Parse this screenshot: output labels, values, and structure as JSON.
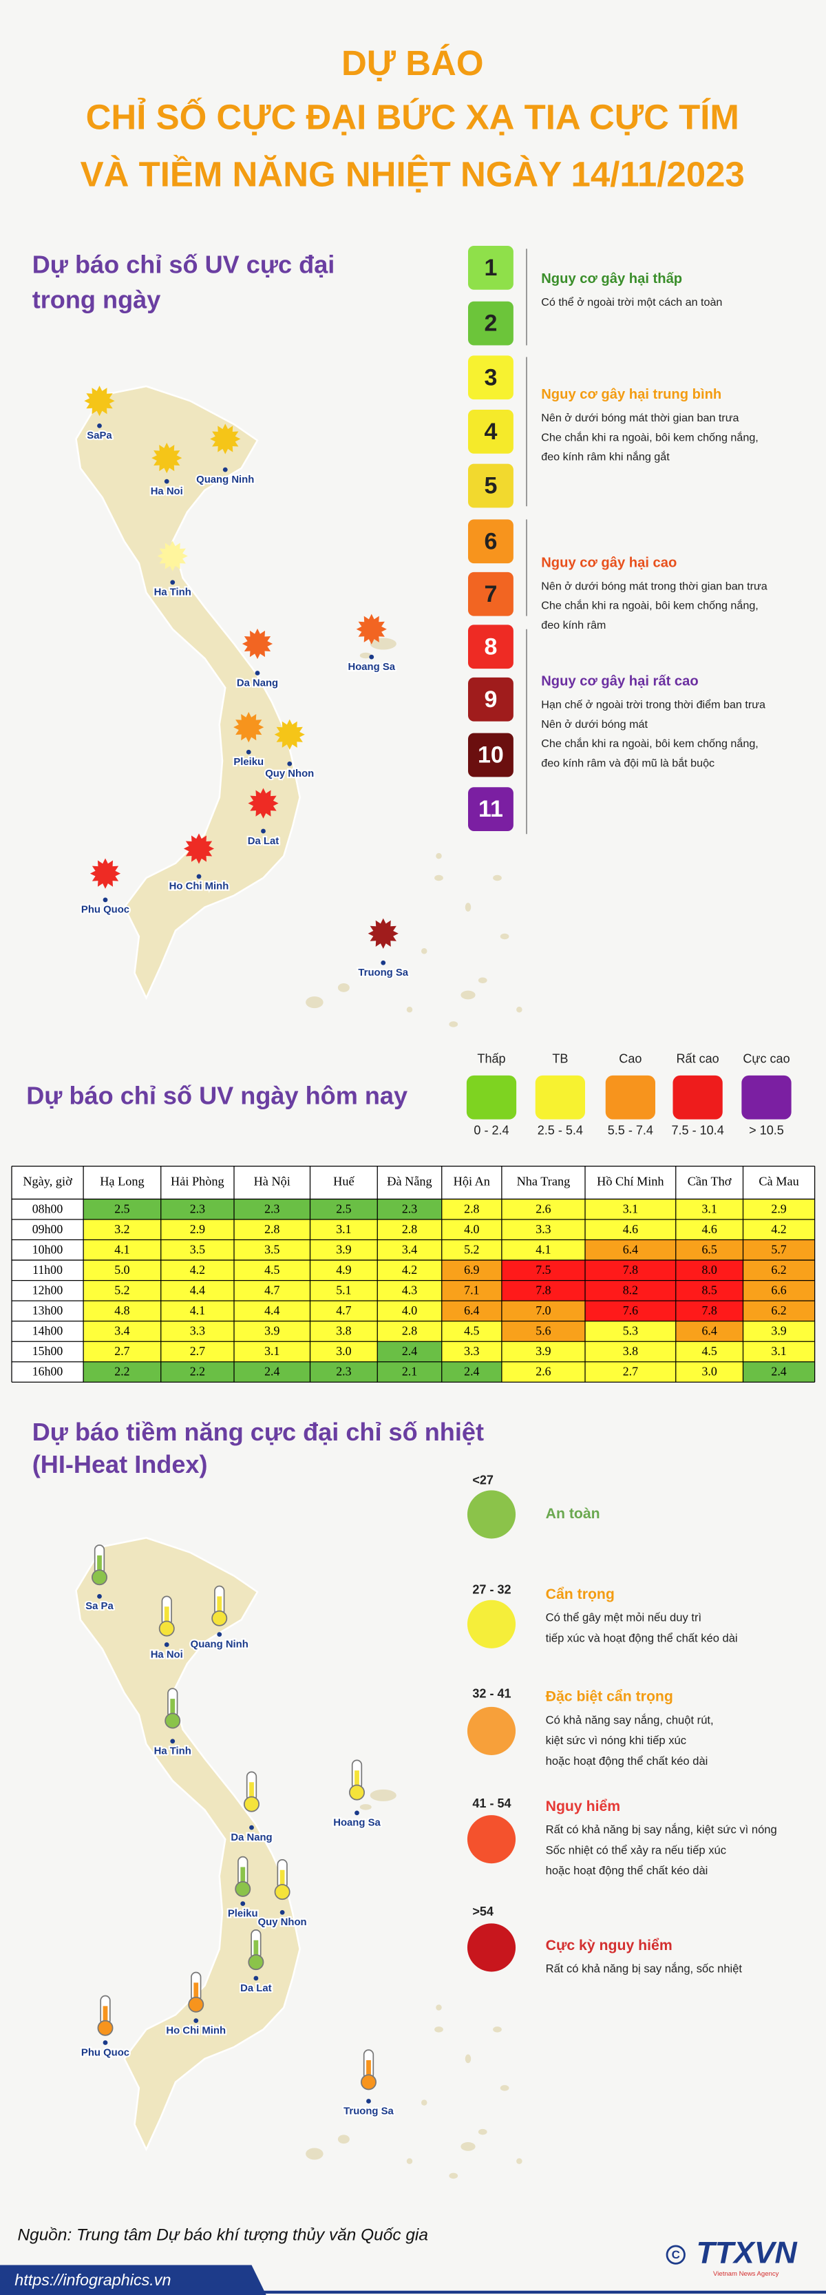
{
  "header": {
    "title_lines": [
      "DỰ BÁO",
      "CHỈ SỐ CỰC ĐẠI BỨC XẠ TIA CỰC TÍM",
      "VÀ TIỀM NĂNG NHIỆT NGÀY 14/11/2023"
    ]
  },
  "uv_map": {
    "title_lines": [
      "Dự báo chỉ số UV cực đại",
      "trong ngày"
    ],
    "places": [
      {
        "label": "SaPa",
        "color": "#f5c518"
      },
      {
        "label": "Ha Noi",
        "color": "#f5c518"
      },
      {
        "label": "Quang Ninh",
        "color": "#f5c518"
      },
      {
        "label": "Ha Tinh",
        "color": "#fff59d"
      },
      {
        "label": "Hoang Sa",
        "color": "#f26522"
      },
      {
        "label": "Da Nang",
        "color": "#f26522"
      },
      {
        "label": "Pleiku",
        "color": "#f7941d"
      },
      {
        "label": "Quy Nhon",
        "color": "#f5c518"
      },
      {
        "label": "Da Lat",
        "color": "#ee2b24"
      },
      {
        "label": "Ho Chi Minh",
        "color": "#ee2b24"
      },
      {
        "label": "Phu Quoc",
        "color": "#ee2b24"
      },
      {
        "label": "Truong Sa",
        "color": "#a01c1c"
      }
    ]
  },
  "uv_scale": {
    "levels": [
      {
        "label": 1,
        "color": "#8fe04a"
      },
      {
        "label": 2,
        "color": "#6cc53a"
      },
      {
        "label": 3,
        "color": "#f7f230"
      },
      {
        "label": 4,
        "color": "#f5ea2a"
      },
      {
        "label": 5,
        "color": "#f2d92e"
      },
      {
        "label": 6,
        "color": "#f7941d"
      },
      {
        "label": 7,
        "color": "#f26522"
      },
      {
        "label": 8,
        "color": "#ee2b24"
      },
      {
        "label": 9,
        "color": "#a01c1c"
      },
      {
        "label": 10,
        "color": "#6b0f0f"
      },
      {
        "label": 11,
        "color": "#7b1fa2"
      }
    ],
    "groups": [
      {
        "title": "Nguy cơ gây hại thấp",
        "color": "#3a8e2a",
        "lines": [
          "Có thể ở ngoài trời một cách an toàn"
        ]
      },
      {
        "title": "Nguy cơ gây hại trung bình",
        "color": "#f39c12",
        "lines": [
          "Nên ở dưới bóng mát thời gian ban trưa",
          "Che chắn khi ra ngoài, bôi kem chống nắng,",
          "đeo kính râm khi nắng gắt"
        ]
      },
      {
        "title": "Nguy cơ gây hại cao",
        "color": "#e8501c",
        "lines": [
          "Nên ở dưới bóng mát trong thời gian ban trưa",
          "Che chắn khi ra ngoài, bôi kem chống nắng,",
          "đeo kính râm"
        ]
      },
      {
        "title": "Nguy cơ gây hại rất cao",
        "color": "#6b2fa0",
        "lines": [
          "Hạn chế ở ngoài trời trong thời điểm ban trưa",
          "Nên ở dưới bóng mát",
          "Che chắn khi ra ngoài, bôi kem chống nắng,",
          "đeo kính râm và đội mũ là bắt buộc"
        ]
      }
    ]
  },
  "uv_today": {
    "title": "Dự báo chỉ số UV ngày hôm nay",
    "legend": [
      {
        "name": "Thấp",
        "range": "0 - 2.4",
        "color": "#7ed321"
      },
      {
        "name": "TB",
        "range": "2.5 - 5.4",
        "color": "#f7f230"
      },
      {
        "name": "Cao",
        "range": "5.5 - 7.4",
        "color": "#f7941d"
      },
      {
        "name": "Rất cao",
        "range": "7.5 - 10.4",
        "color": "#ee1c1c"
      },
      {
        "name": "Cực cao",
        "range": "> 10.5",
        "color": "#7b1fa2"
      }
    ]
  },
  "uv_table": {
    "header": [
      "Ngày, giờ",
      "Hạ Long",
      "Hải Phòng",
      "Hà Nội",
      "Huế",
      "Đà Nẵng",
      "Hội An",
      "Nha Trang",
      "Hồ Chí Minh",
      "Cần Thơ",
      "Cà Mau"
    ],
    "rows": [
      {
        "time": "08h00",
        "values": [
          "2.5",
          "2.3",
          "2.3",
          "2.5",
          "2.3",
          "2.8",
          "2.6",
          "3.1",
          "3.1",
          "2.9"
        ],
        "colors": [
          "#6abf45",
          "#6abf45",
          "#6abf45",
          "#6abf45",
          "#6abf45",
          "#ffff3b",
          "#ffff3b",
          "#ffff3b",
          "#ffff3b",
          "#ffff3b"
        ]
      },
      {
        "time": "09h00",
        "values": [
          "3.2",
          "2.9",
          "2.8",
          "3.1",
          "2.8",
          "4.0",
          "3.3",
          "4.6",
          "4.6",
          "4.2"
        ],
        "colors": [
          "#ffff3b",
          "#ffff3b",
          "#ffff3b",
          "#ffff3b",
          "#ffff3b",
          "#ffff3b",
          "#ffff3b",
          "#ffff3b",
          "#ffff3b",
          "#ffff3b"
        ]
      },
      {
        "time": "10h00",
        "values": [
          "4.1",
          "3.5",
          "3.5",
          "3.9",
          "3.4",
          "5.2",
          "4.1",
          "6.4",
          "6.5",
          "5.7"
        ],
        "colors": [
          "#ffff3b",
          "#ffff3b",
          "#ffff3b",
          "#ffff3b",
          "#ffff3b",
          "#ffff3b",
          "#ffff3b",
          "#f9a11b",
          "#f9a11b",
          "#f9a11b"
        ]
      },
      {
        "time": "11h00",
        "values": [
          "5.0",
          "4.2",
          "4.5",
          "4.9",
          "4.2",
          "6.9",
          "7.5",
          "7.8",
          "8.0",
          "6.2"
        ],
        "colors": [
          "#ffff3b",
          "#ffff3b",
          "#ffff3b",
          "#ffff3b",
          "#ffff3b",
          "#f9a11b",
          "#ff1a1a",
          "#ff1a1a",
          "#ff1a1a",
          "#f9a11b"
        ]
      },
      {
        "time": "12h00",
        "values": [
          "5.2",
          "4.4",
          "4.7",
          "5.1",
          "4.3",
          "7.1",
          "7.8",
          "8.2",
          "8.5",
          "6.6"
        ],
        "colors": [
          "#ffff3b",
          "#ffff3b",
          "#ffff3b",
          "#ffff3b",
          "#ffff3b",
          "#f9a11b",
          "#ff1a1a",
          "#ff1a1a",
          "#ff1a1a",
          "#f9a11b"
        ]
      },
      {
        "time": "13h00",
        "values": [
          "4.8",
          "4.1",
          "4.4",
          "4.7",
          "4.0",
          "6.4",
          "7.0",
          "7.6",
          "7.8",
          "6.2"
        ],
        "colors": [
          "#ffff3b",
          "#ffff3b",
          "#ffff3b",
          "#ffff3b",
          "#ffff3b",
          "#f9a11b",
          "#f9a11b",
          "#ff1a1a",
          "#ff1a1a",
          "#f9a11b"
        ]
      },
      {
        "time": "14h00",
        "values": [
          "3.4",
          "3.3",
          "3.9",
          "3.8",
          "2.8",
          "4.5",
          "5.6",
          "5.3",
          "6.4",
          "3.9"
        ],
        "colors": [
          "#ffff3b",
          "#ffff3b",
          "#ffff3b",
          "#ffff3b",
          "#ffff3b",
          "#ffff3b",
          "#f9a11b",
          "#ffff3b",
          "#f9a11b",
          "#ffff3b"
        ]
      },
      {
        "time": "15h00",
        "values": [
          "2.7",
          "2.7",
          "3.1",
          "3.0",
          "2.4",
          "3.3",
          "3.9",
          "3.8",
          "4.5",
          "3.1"
        ],
        "colors": [
          "#ffff3b",
          "#ffff3b",
          "#ffff3b",
          "#ffff3b",
          "#6abf45",
          "#ffff3b",
          "#ffff3b",
          "#ffff3b",
          "#ffff3b",
          "#ffff3b"
        ]
      },
      {
        "time": "16h00",
        "values": [
          "2.2",
          "2.2",
          "2.4",
          "2.3",
          "2.1",
          "2.4",
          "2.6",
          "2.7",
          "3.0",
          "2.4"
        ],
        "colors": [
          "#6abf45",
          "#6abf45",
          "#6abf45",
          "#6abf45",
          "#6abf45",
          "#6abf45",
          "#ffff3b",
          "#ffff3b",
          "#ffff3b",
          "#6abf45"
        ]
      }
    ]
  },
  "heat_map": {
    "title_lines": [
      "Dự báo tiềm năng cực đại chỉ số nhiệt",
      "(HI-Heat Index)"
    ],
    "places": [
      {
        "label": "Sa Pa",
        "color": "#8bc34a"
      },
      {
        "label": "Ha Noi",
        "color": "#f5e33a"
      },
      {
        "label": "Quang Ninh",
        "color": "#f5e33a"
      },
      {
        "label": "Ha Tinh",
        "color": "#8bc34a"
      },
      {
        "label": "Hoang Sa",
        "color": "#f5e33a"
      },
      {
        "label": "Da Nang",
        "color": "#f5e33a"
      },
      {
        "label": "Pleiku",
        "color": "#8bc34a"
      },
      {
        "label": "Quy Nhon",
        "color": "#f5e33a"
      },
      {
        "label": "Da Lat",
        "color": "#8bc34a"
      },
      {
        "label": "Ho Chi Minh",
        "color": "#f7941d"
      },
      {
        "label": "Phu Quoc",
        "color": "#f7941d"
      },
      {
        "label": "Truong Sa",
        "color": "#f7941d"
      }
    ]
  },
  "heat_legend": [
    {
      "range": "<27",
      "title": "An toàn",
      "title_color": "#6aa84f",
      "color": "#8bc34a"
    },
    {
      "range": "27 - 32",
      "title": "Cẩn trọng",
      "title_color": "#f39c12",
      "color": "#f5ee3a",
      "lines": [
        "Có thể gây mệt mỏi nếu duy trì",
        "tiếp xúc và hoạt động thể chất kéo dài"
      ]
    },
    {
      "range": "32 - 41",
      "title": "Đặc biệt cẩn trọng",
      "title_color": "#f39c12",
      "color": "#f7a03a",
      "lines": [
        "Có khả năng say nắng, chuột rút,",
        "kiệt sức vì nóng khi tiếp xúc",
        "hoặc hoạt động thể chất kéo dài"
      ]
    },
    {
      "range": "41 - 54",
      "title": "Nguy hiểm",
      "title_color": "#e53935",
      "color": "#f4522d",
      "lines": [
        "Rất có khả năng bị say nắng, kiệt sức vì nóng",
        "Sốc nhiệt có thể xảy ra nếu tiếp xúc",
        "hoặc hoạt động thể chất kéo dài"
      ]
    },
    {
      "range": ">54",
      "title": "Cực kỳ nguy hiểm",
      "title_color": "#d32f2f",
      "color": "#c8161d",
      "lines": [
        "Rất có khả năng bị say nắng, sốc nhiệt"
      ]
    }
  ],
  "footer": {
    "source": "Nguồn: Trung tâm Dự báo khí tượng thủy văn Quốc gia",
    "url": "https://infographics.vn",
    "logo": "TTXVN",
    "logo_sub": "Vietnam News Agency"
  }
}
